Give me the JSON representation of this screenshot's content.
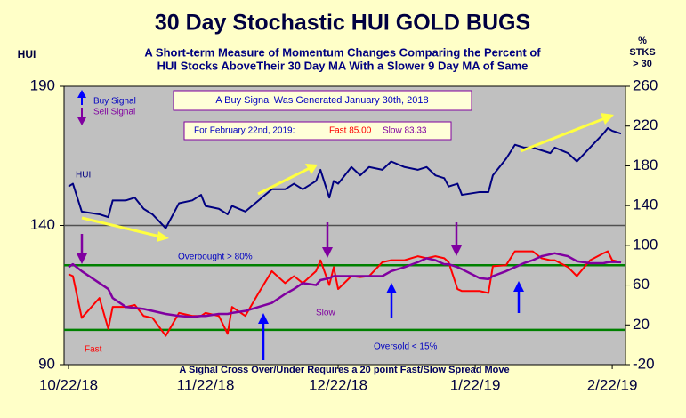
{
  "chart_data": {
    "type": "line",
    "title": "30 Day Stochastic HUI GOLD BUGS",
    "subtitle": [
      "A Short-term Measure of Momentum Changes Comparing the Percent of",
      "HUI Stocks AboveTheir 30 Day MA With a Slower 9 Day MA of Same"
    ],
    "ylabel": "HUI",
    "y2label": [
      "%",
      "STKS",
      "> 30"
    ],
    "annotations": {
      "buy": "Buy Signal",
      "sell": "Sell Signal",
      "box1": "A Buy Signal Was Generated January 30th, 2018",
      "box2_prefix": "For February 22nd, 2019:",
      "box2_fast": "Fast 85.00",
      "box2_slow": "Slow 83.33",
      "note": "A Signal Cross Over/Under Requires a 20 point Fast/Slow Spread Move"
    },
    "reference_lines": [
      {
        "value": 80,
        "label": "Overbought > 80%",
        "axis": "y2",
        "color": "#008000"
      },
      {
        "value": 15,
        "label": "Oversold < 15%",
        "axis": "y2",
        "color": "#008000"
      }
    ],
    "x": [
      "2018-10-22",
      "2018-10-23",
      "2018-10-25",
      "2018-10-29",
      "2018-10-31",
      "2018-11-01",
      "2018-11-04",
      "2018-11-06",
      "2018-11-08",
      "2018-11-10",
      "2018-11-13",
      "2018-11-16",
      "2018-11-19",
      "2018-11-21",
      "2018-11-22",
      "2018-11-25",
      "2018-11-27",
      "2018-11-28",
      "2018-12-01",
      "2018-12-04",
      "2018-12-07",
      "2018-12-10",
      "2018-12-12",
      "2018-12-14",
      "2018-12-17",
      "2018-12-18",
      "2018-12-20",
      "2018-12-21",
      "2018-12-22",
      "2018-12-25",
      "2018-12-27",
      "2018-12-29",
      "2019-01-01",
      "2019-01-03",
      "2019-01-06",
      "2019-01-09",
      "2019-01-11",
      "2019-01-13",
      "2019-01-15",
      "2019-01-16",
      "2019-01-18",
      "2019-01-19",
      "2019-01-23",
      "2019-01-25",
      "2019-01-26",
      "2019-01-29",
      "2019-01-31",
      "2019-02-02",
      "2019-02-04",
      "2019-02-06",
      "2019-02-08",
      "2019-02-09",
      "2019-02-12",
      "2019-02-14",
      "2019-02-17",
      "2019-02-20",
      "2019-02-21",
      "2019-02-22",
      "2019-02-24"
    ],
    "series": [
      {
        "name": "HUI",
        "color": "#000080",
        "axis": "y",
        "values": [
          154,
          155,
          145,
          144,
          143,
          149,
          149,
          150,
          146,
          144,
          139,
          148,
          149,
          151,
          147,
          146,
          144,
          147,
          145,
          149,
          153,
          153,
          155,
          153,
          156,
          160,
          150,
          156,
          155,
          161,
          158,
          161,
          160,
          163,
          161,
          160,
          161,
          158,
          157,
          154,
          155,
          151,
          152,
          152,
          158,
          164,
          169,
          168,
          168,
          167,
          166,
          168,
          166,
          163,
          168,
          173,
          175,
          174,
          173
        ]
      },
      {
        "name": "Fast",
        "color": "#ff0000",
        "axis": "y2",
        "values": [
          71,
          69,
          27,
          47,
          16,
          38,
          38,
          40,
          29,
          27,
          9,
          32,
          29,
          29,
          32,
          29,
          11,
          38,
          29,
          52,
          74,
          62,
          69,
          62,
          74,
          85,
          60,
          78,
          56,
          69,
          68,
          69,
          83,
          85,
          85,
          89,
          87,
          89,
          87,
          83,
          56,
          54,
          54,
          52,
          79,
          80,
          94,
          94,
          94,
          87,
          85,
          85,
          78,
          69,
          85,
          92,
          94,
          85,
          83
        ]
      },
      {
        "name": "Slow",
        "color": "#8000a0",
        "axis": "y2",
        "values": [
          78,
          81,
          74,
          62,
          56,
          47,
          38,
          37,
          36,
          34,
          31,
          29,
          28,
          29,
          29,
          31,
          31,
          32,
          34,
          38,
          42,
          51,
          56,
          62,
          60,
          65,
          67,
          69,
          69,
          69,
          69,
          69,
          69,
          74,
          78,
          83,
          87,
          85,
          81,
          81,
          78,
          76,
          67,
          66,
          69,
          74,
          78,
          82,
          85,
          89,
          91,
          92,
          89,
          84,
          82,
          82,
          83,
          83.33,
          83
        ]
      }
    ],
    "xlim": [
      "2018-10-21",
      "2019-02-25"
    ],
    "xticks": [
      {
        "value": "2018-10-22",
        "label": "10/22/18"
      },
      {
        "value": "2018-11-22",
        "label": "11/22/18"
      },
      {
        "value": "2018-12-22",
        "label": "12/22/18"
      },
      {
        "value": "2019-01-22",
        "label": "1/22/19"
      },
      {
        "value": "2019-02-22",
        "label": "2/22/19"
      }
    ],
    "ylim": [
      90,
      190
    ],
    "yticks": [
      90,
      140,
      190
    ],
    "y2lim": [
      -20,
      260
    ],
    "y2ticks": [
      -20,
      20,
      60,
      100,
      140,
      180,
      220,
      260
    ],
    "grid_y": [
      140
    ]
  }
}
